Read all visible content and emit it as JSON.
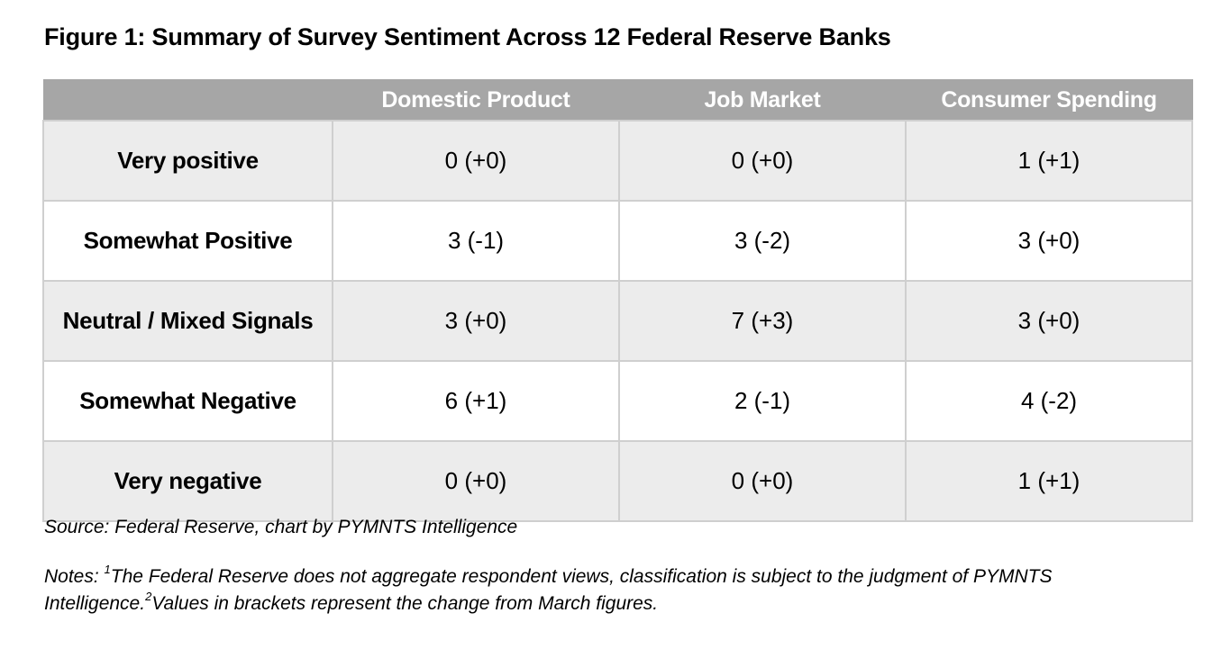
{
  "chart_data": {
    "type": "table",
    "title": "Figure 1: Summary of Survey Sentiment Across 12 Federal Reserve Banks",
    "columns": [
      "",
      "Domestic Product",
      "Job Market",
      "Consumer Spending"
    ],
    "rows": [
      {
        "label": "Very positive",
        "cells": [
          "0 (+0)",
          "0 (+0)",
          "1 (+1)"
        ]
      },
      {
        "label": "Somewhat Positive",
        "cells": [
          "3 (-1)",
          "3 (-2)",
          "3 (+0)"
        ]
      },
      {
        "label": "Neutral / Mixed Signals",
        "cells": [
          "3 (+0)",
          "7 (+3)",
          "3 (+0)"
        ]
      },
      {
        "label": "Somewhat Negative",
        "cells": [
          "6 (+1)",
          "2 (-1)",
          "4 (-2)"
        ]
      },
      {
        "label": "Very negative",
        "cells": [
          "0 (+0)",
          "0 (+0)",
          "1 (+1)"
        ]
      }
    ],
    "source": "Source: Federal Reserve, chart by PYMNTS Intelligence",
    "notes": {
      "prefix": "Notes: ",
      "marker1": "1",
      "text1": "The Federal Reserve does not aggregate respondent views, classification is subject to the judgment of PYMNTS Intelligence.",
      "marker2": "2",
      "text2": "Values in brackets represent the change from March figures."
    }
  },
  "colors": {
    "header_bg": "#a6a6a6",
    "header_text": "#ffffff",
    "shaded_row_bg": "#ececec",
    "plain_row_bg": "#ffffff",
    "grid_line": "#cfcfcf"
  }
}
